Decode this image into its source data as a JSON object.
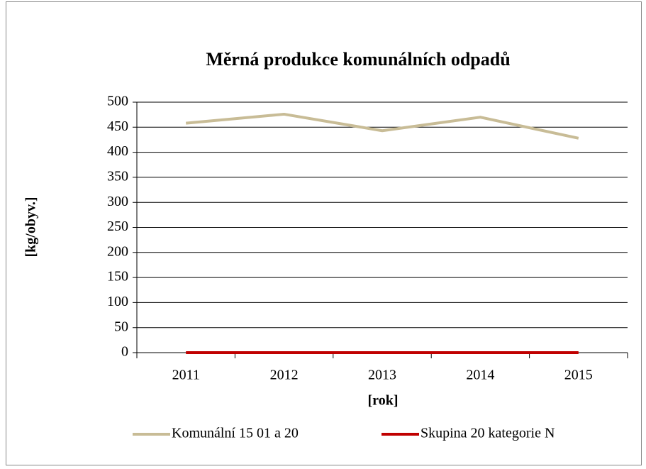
{
  "chart_data": {
    "type": "line",
    "title": "Měrná produkce komunálních odpadů",
    "x_label": "[rok]",
    "y_label": "[kg/obyv.]",
    "categories": [
      "2011",
      "2012",
      "2013",
      "2014",
      "2015"
    ],
    "series": [
      {
        "name": "Komunální 15 01 a 20",
        "color": "#c8bc96",
        "values": [
          458,
          476,
          443,
          470,
          428
        ]
      },
      {
        "name": "Skupina 20 kategorie N",
        "color": "#c00000",
        "values": [
          0,
          0,
          0,
          0,
          0
        ]
      }
    ],
    "ylim": [
      0,
      500
    ],
    "yticks": [
      0,
      50,
      100,
      150,
      200,
      250,
      300,
      350,
      400,
      450,
      500
    ],
    "grid": true,
    "legend": "bottom"
  }
}
